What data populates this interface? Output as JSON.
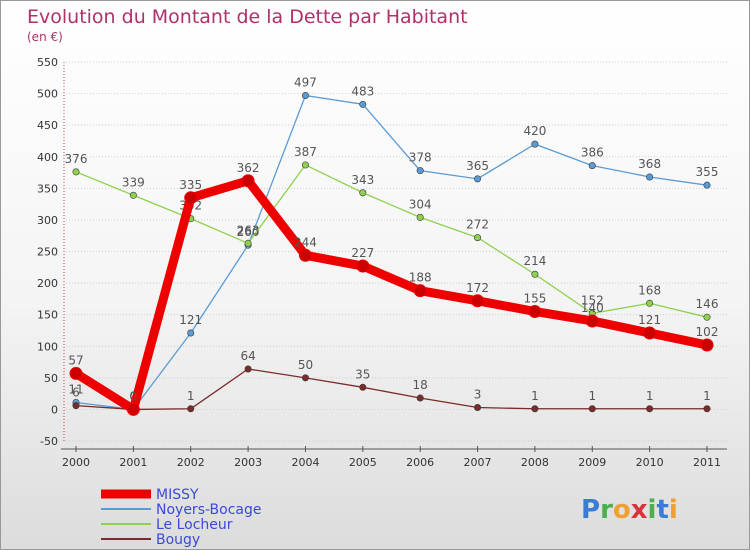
{
  "chart_data": {
    "type": "line",
    "title": "Evolution du Montant de la Dette par Habitant",
    "subtitle": "(en €)",
    "x": [
      "2000",
      "2001",
      "2002",
      "2003",
      "2004",
      "2005",
      "2006",
      "2007",
      "2008",
      "2009",
      "2010",
      "2011"
    ],
    "yticks": [
      -50,
      0,
      50,
      100,
      150,
      200,
      250,
      300,
      350,
      400,
      450,
      500,
      550
    ],
    "ylim": [
      -50,
      550
    ],
    "grid": "horizontal",
    "legend_position": "bottom-left",
    "series": [
      {
        "name": "MISSY",
        "color": "#ee0000",
        "values": [
          57,
          0,
          335,
          362,
          244,
          227,
          188,
          172,
          155,
          140,
          121,
          102
        ]
      },
      {
        "name": "Noyers-Bocage",
        "color": "#5b9bd5",
        "values": [
          11,
          0,
          121,
          260,
          497,
          483,
          378,
          365,
          420,
          386,
          368,
          355
        ]
      },
      {
        "name": "Le Locheur",
        "color": "#8fd14f",
        "values": [
          376,
          339,
          302,
          263,
          387,
          343,
          304,
          272,
          214,
          152,
          168,
          146
        ]
      },
      {
        "name": "Bougy",
        "color": "#7a2b2b",
        "values": [
          6,
          0,
          1,
          64,
          50,
          35,
          18,
          3,
          1,
          1,
          1,
          1
        ]
      }
    ]
  },
  "logo": {
    "text": "Proxiti"
  }
}
